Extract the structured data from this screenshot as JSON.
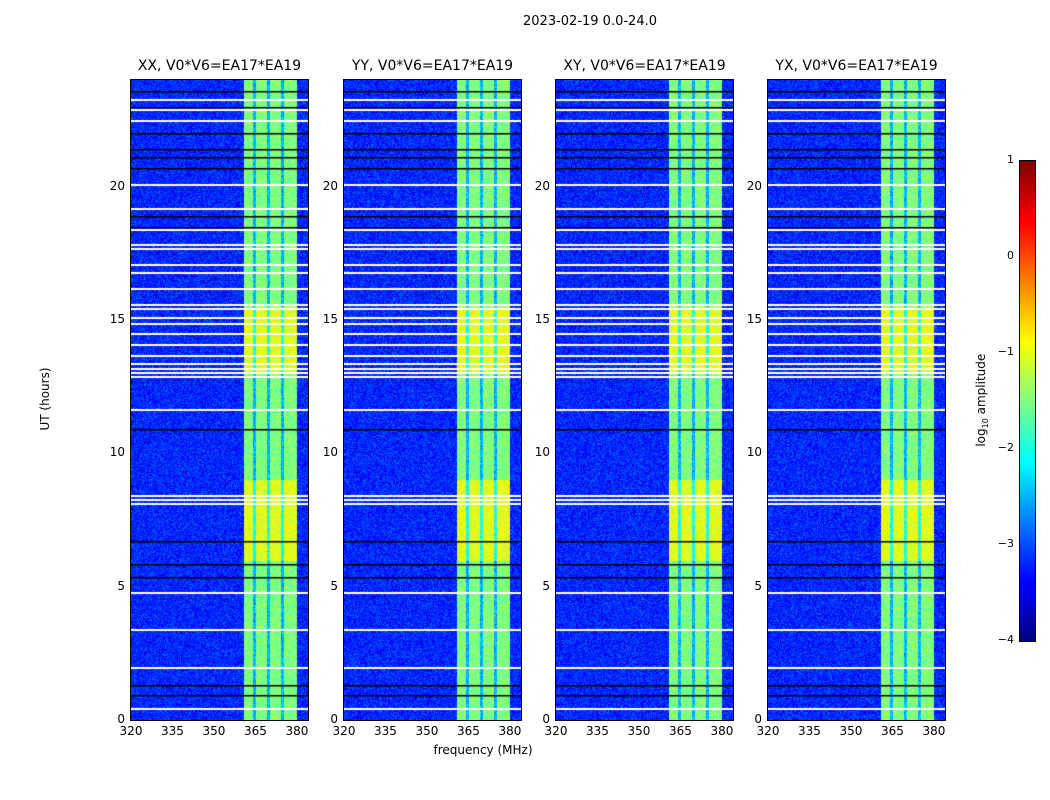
{
  "chart_data": {
    "type": "heatmap",
    "suptitle": "2023-02-19 0.0-24.0",
    "panels": [
      {
        "title": "XX, V0*V6=EA17*EA19"
      },
      {
        "title": "YY, V0*V6=EA17*EA19"
      },
      {
        "title": "XY, V0*V6=EA17*EA19"
      },
      {
        "title": "YX, V0*V6=EA17*EA19"
      }
    ],
    "xlabel": "frequency (MHz)",
    "ylabel": "UT (hours)",
    "xlim": [
      320,
      384
    ],
    "ylim": [
      0,
      24
    ],
    "xticks": [
      "320",
      "335",
      "350",
      "365",
      "380"
    ],
    "xtick_values": [
      320,
      335,
      350,
      365,
      380
    ],
    "yticks": [
      "0",
      "5",
      "10",
      "15",
      "20"
    ],
    "ytick_values": [
      0,
      5,
      10,
      15,
      20
    ],
    "background_log_amplitude": -3.2,
    "rfi_band_mhz": [
      360.5,
      380
    ],
    "rfi_band_log_amplitude": -1.5,
    "bright_periods_hours": [
      [
        6,
        9
      ],
      [
        13,
        15.5
      ]
    ],
    "flagged_white_hours": [
      0.45,
      2.0,
      3.4,
      4.8,
      8.15,
      8.3,
      8.45,
      11.65,
      12.9,
      13.05,
      13.2,
      13.4,
      13.7,
      14.1,
      14.5,
      14.9,
      15.1,
      15.45,
      15.6,
      16.2,
      16.8,
      17.1,
      17.7,
      17.85,
      18.4,
      19.2,
      20.1,
      22.5,
      22.9,
      23.3
    ],
    "flagged_black_hours": [
      0.95,
      1.3,
      5.35,
      5.85,
      6.7,
      10.9,
      18.5,
      18.9,
      20.7,
      21.1,
      21.4,
      22.0,
      23.0,
      23.6
    ],
    "colorbar": {
      "label": "log10 amplitude",
      "label_main": "log",
      "label_sub": "10",
      "label_rest": " amplitude",
      "range": [
        -4,
        1
      ],
      "ticks": [
        "1",
        "0",
        "−1",
        "−2",
        "−3",
        "−4"
      ],
      "tick_values": [
        1,
        0,
        -1,
        -2,
        -3,
        -4
      ],
      "colormap": "jet"
    }
  }
}
